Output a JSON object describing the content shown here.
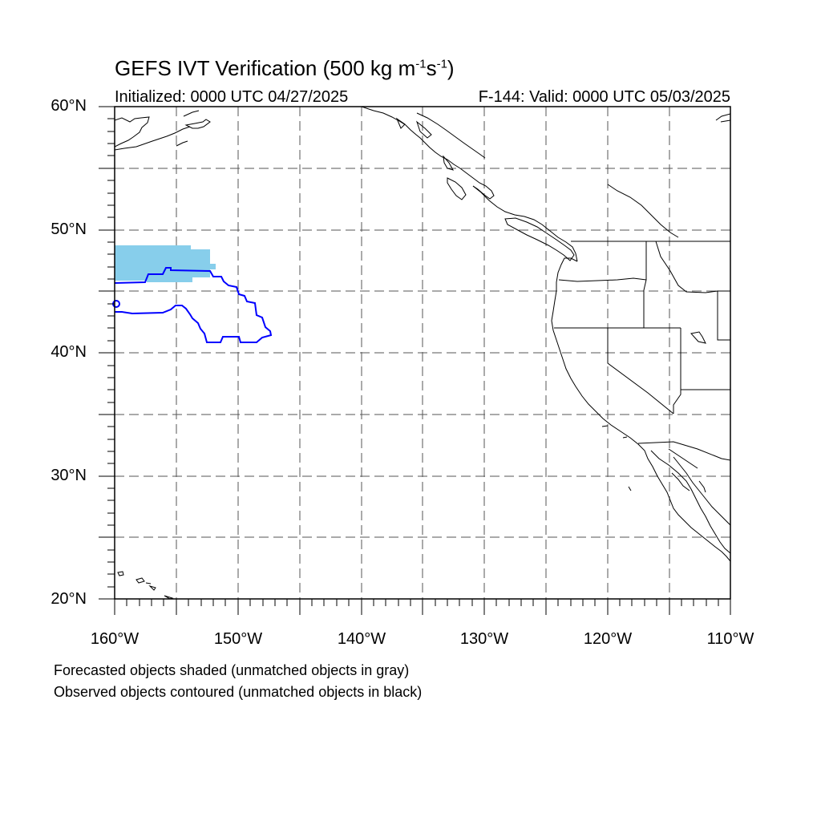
{
  "title": {
    "prefix": "GEFS IVT Verification (500 kg m",
    "exp1": "-1",
    "mid": "s",
    "exp2": "-1",
    "suffix": ")"
  },
  "initialized": "Initialized: 0000 UTC 04/27/2025",
  "valid": "F-144: Valid: 0000 UTC 05/03/2025",
  "lat_labels": [
    "60°N",
    "50°N",
    "40°N",
    "30°N",
    "20°N"
  ],
  "lon_labels": [
    "160°W",
    "150°W",
    "140°W",
    "130°W",
    "120°W",
    "110°W"
  ],
  "notes": [
    "Forecasted objects shaded (unmatched objects in gray)",
    "Observed objects contoured (unmatched objects in black)"
  ],
  "map_extent": {
    "lon": [
      -160,
      -110
    ],
    "lat": [
      20,
      60
    ]
  },
  "gridlines": {
    "style": "dashed",
    "lon_step_deg": 5,
    "lat_step_deg": 5
  },
  "colors": {
    "forecast_matched_fill": "#87ceeb",
    "observed_matched_contour": "#0000ff",
    "coastline": "#000000",
    "gridline": "#555555"
  },
  "objects": {
    "forecast_matched_fill": "light blue shaded region near 46–49°N, 152–160°W",
    "observed_matched_contour": "blue contour near 41–47°N, 147–160°W"
  }
}
